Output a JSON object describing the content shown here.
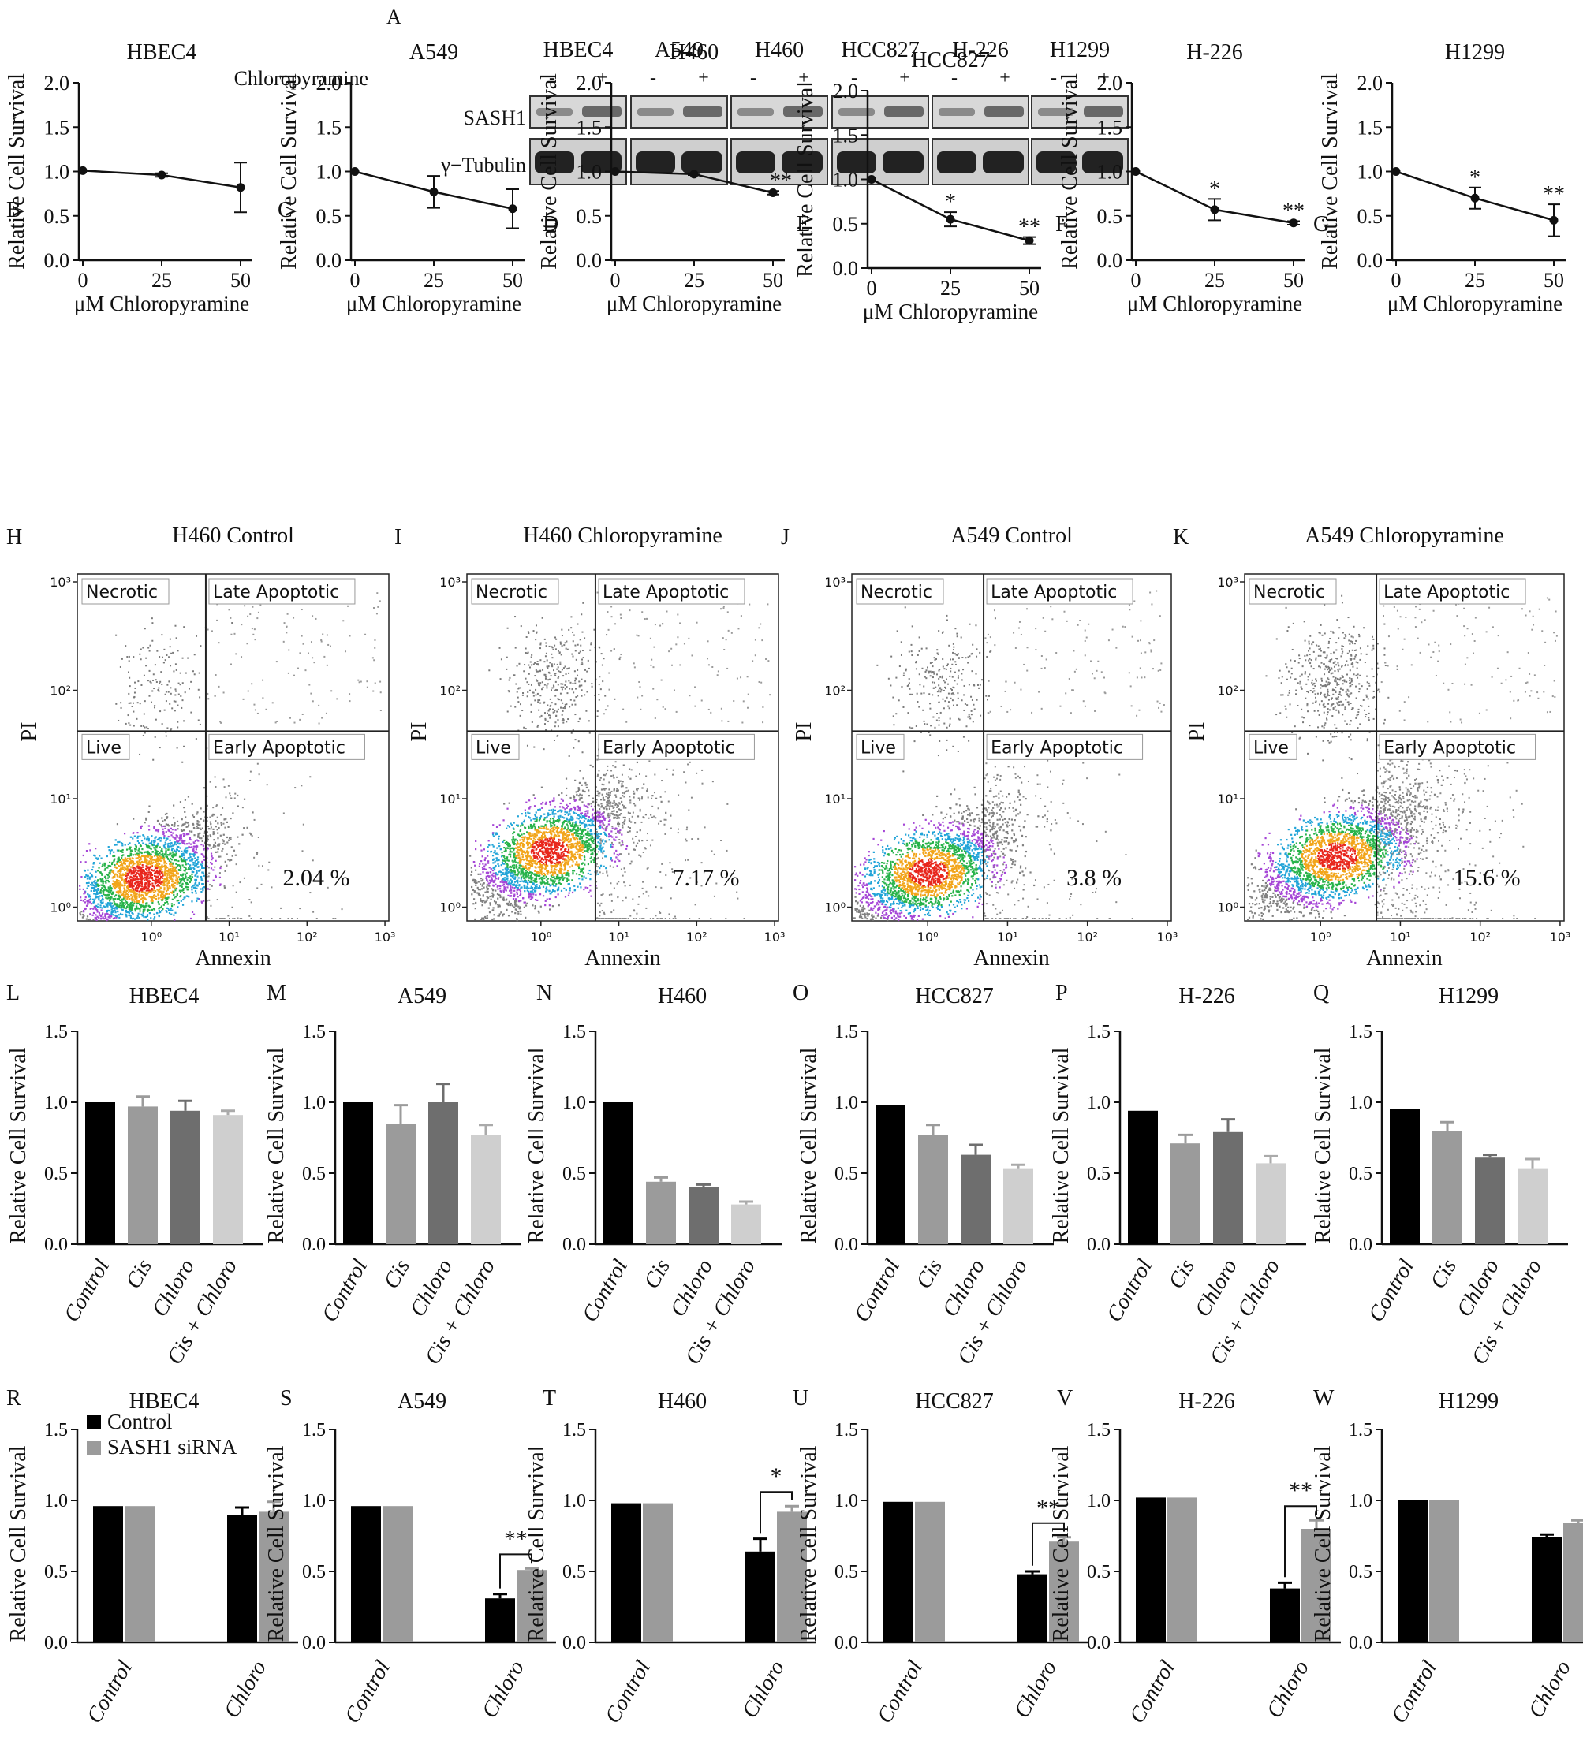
{
  "panel_letters": {
    "A": "A",
    "B": "B",
    "C": "C",
    "D": "D",
    "E": "E",
    "F": "F",
    "G": "G",
    "H": "H",
    "I": "I",
    "J": "J",
    "K": "K",
    "L": "L",
    "M": "M",
    "N": "N",
    "O": "O",
    "P": "P",
    "Q": "Q",
    "R": "R",
    "S": "S",
    "T": "T",
    "U": "U",
    "V": "V",
    "W": "W"
  },
  "western": {
    "cell_lines": [
      "HBEC4",
      "A549",
      "H460",
      "HCC827",
      "H-226",
      "H1299"
    ],
    "treatment_label": "Chloropyramine",
    "minus": "-",
    "plus": "+",
    "bands": [
      "SASH1",
      "γ−Tubulin"
    ]
  },
  "chart_data": [
    {
      "panel": "B",
      "type": "line",
      "title": "HBEC4",
      "xlabel": "μM Chloropyramine",
      "ylabel": "Relative Cell Survival",
      "x": [
        0,
        25,
        50
      ],
      "values": [
        1.01,
        0.96,
        0.82
      ],
      "errors": [
        0,
        0.02,
        0.28
      ],
      "significance": [
        "",
        "",
        ""
      ],
      "ylim": [
        0,
        2
      ],
      "yticks": [
        "0.0",
        "0.5",
        "1.0",
        "1.5",
        "2.0"
      ],
      "xticks": [
        "0",
        "25",
        "50"
      ]
    },
    {
      "panel": "C",
      "type": "line",
      "title": "A549",
      "xlabel": "μM Chloropyramine",
      "ylabel": "Relative Cell Survival",
      "x": [
        0,
        25,
        50
      ],
      "values": [
        1.0,
        0.77,
        0.58
      ],
      "errors": [
        0,
        0.18,
        0.22
      ],
      "significance": [
        "",
        "",
        ""
      ],
      "ylim": [
        0,
        2
      ],
      "yticks": [
        "0.0",
        "0.5",
        "1.0",
        "1.5",
        "2.0"
      ],
      "xticks": [
        "0",
        "25",
        "50"
      ]
    },
    {
      "panel": "D",
      "type": "line",
      "title": "H460",
      "xlabel": "μM Chloropyramine",
      "ylabel": "Relative Cell Survival",
      "x": [
        0,
        25,
        50
      ],
      "values": [
        1.0,
        0.97,
        0.76
      ],
      "errors": [
        0,
        0.01,
        0.02
      ],
      "significance": [
        "",
        "",
        "**"
      ],
      "ylim": [
        0,
        2
      ],
      "yticks": [
        "0.0",
        "0.5",
        "1.0",
        "1.5",
        "2.0"
      ],
      "xticks": [
        "0",
        "25",
        "50"
      ]
    },
    {
      "panel": "E",
      "type": "line",
      "title": "HCC827",
      "xlabel": "μM Chloropyramine",
      "ylabel": "Relative Cell Survival",
      "x": [
        0,
        25,
        50
      ],
      "values": [
        1.0,
        0.55,
        0.31
      ],
      "errors": [
        0,
        0.08,
        0.04
      ],
      "significance": [
        "",
        "*",
        "**"
      ],
      "ylim": [
        0,
        2
      ],
      "yticks": [
        "0.0",
        "0.5",
        "1.0",
        "1.5",
        "2.0"
      ],
      "xticks": [
        "0",
        "25",
        "50"
      ]
    },
    {
      "panel": "F",
      "type": "line",
      "title": "H-226",
      "xlabel": "μM Chloropyramine",
      "ylabel": "Relative Cell Survival",
      "x": [
        0,
        25,
        50
      ],
      "values": [
        1.0,
        0.57,
        0.42
      ],
      "errors": [
        0,
        0.12,
        0.02
      ],
      "significance": [
        "",
        "*",
        "**"
      ],
      "ylim": [
        0,
        2
      ],
      "yticks": [
        "0.0",
        "0.5",
        "1.0",
        "1.5",
        "2.0"
      ],
      "xticks": [
        "0",
        "25",
        "50"
      ]
    },
    {
      "panel": "G",
      "type": "line",
      "title": "H1299",
      "xlabel": "μM Chloropyramine",
      "ylabel": "Relative Cell Survival",
      "x": [
        0,
        25,
        50
      ],
      "values": [
        1.0,
        0.7,
        0.45
      ],
      "errors": [
        0,
        0.12,
        0.18
      ],
      "significance": [
        "",
        "*",
        "**"
      ],
      "ylim": [
        0,
        2
      ],
      "yticks": [
        "0.0",
        "0.5",
        "1.0",
        "1.5",
        "2.0"
      ],
      "xticks": [
        "0",
        "25",
        "50"
      ]
    },
    {
      "panel": "H",
      "type": "scatter",
      "title": "H460 Control",
      "xlabel": "Annexin",
      "ylabel": "PI",
      "quadrants": [
        "Necrotic",
        "Late Apoptotic",
        "Live",
        "Early Apoptotic"
      ],
      "percent": "2.04 %",
      "xticks": [
        "10⁰",
        "10¹",
        "10²",
        "10³"
      ],
      "yticks": [
        "10⁰",
        "10¹",
        "10²",
        "10³"
      ],
      "live_center": [
        0.7,
        1.1
      ],
      "spread": 0.35,
      "necrotic_cluster": 0.25,
      "ea_density": 0.18
    },
    {
      "panel": "I",
      "type": "scatter",
      "title": "H460 Chloropyramine",
      "xlabel": "Annexin",
      "ylabel": "PI",
      "quadrants": [
        "Necrotic",
        "Late Apoptotic",
        "Live",
        "Early Apoptotic"
      ],
      "percent": "7.17 %",
      "xticks": [
        "10⁰",
        "10¹",
        "10²",
        "10³"
      ],
      "yticks": [
        "10⁰",
        "10¹",
        "10²",
        "10³"
      ],
      "live_center": [
        0.9,
        1.35
      ],
      "spread": 0.45,
      "necrotic_cluster": 0.7,
      "ea_density": 0.45
    },
    {
      "panel": "J",
      "type": "scatter",
      "title": "A549 Control",
      "xlabel": "Annexin",
      "ylabel": "PI",
      "quadrants": [
        "Necrotic",
        "Late Apoptotic",
        "Live",
        "Early Apoptotic"
      ],
      "percent": "3.8 %",
      "xticks": [
        "10⁰",
        "10¹",
        "10²",
        "10³"
      ],
      "yticks": [
        "10⁰",
        "10¹",
        "10²",
        "10³"
      ],
      "live_center": [
        0.8,
        1.15
      ],
      "spread": 0.5,
      "necrotic_cluster": 0.45,
      "ea_density": 0.3
    },
    {
      "panel": "K",
      "type": "scatter",
      "title": "A549 Chloropyramine",
      "xlabel": "Annexin",
      "ylabel": "PI",
      "quadrants": [
        "Necrotic",
        "Late Apoptotic",
        "Live",
        "Early Apoptotic"
      ],
      "percent": "15.6 %",
      "xticks": [
        "10⁰",
        "10¹",
        "10²",
        "10³"
      ],
      "yticks": [
        "10⁰",
        "10¹",
        "10²",
        "10³"
      ],
      "live_center": [
        1.0,
        1.3
      ],
      "spread": 0.55,
      "necrotic_cluster": 0.95,
      "ea_density": 0.8
    },
    {
      "panel": "L",
      "type": "bar",
      "title": "HBEC4",
      "ylabel": "Relative Cell Survival",
      "categories": [
        "Control",
        "Cis",
        "Chloro",
        "Cis + Chloro"
      ],
      "values": [
        1.0,
        0.97,
        0.94,
        0.91
      ],
      "errors": [
        0,
        0.07,
        0.07,
        0.03
      ],
      "ylim": [
        0,
        1.5
      ],
      "yticks": [
        "0.0",
        "0.5",
        "1.0",
        "1.5"
      ]
    },
    {
      "panel": "M",
      "type": "bar",
      "title": "A549",
      "ylabel": "Relative Cell Survival",
      "categories": [
        "Control",
        "Cis",
        "Chloro",
        "Cis + Chloro"
      ],
      "values": [
        1.0,
        0.85,
        1.0,
        0.77
      ],
      "errors": [
        0,
        0.13,
        0.13,
        0.07
      ],
      "ylim": [
        0,
        1.5
      ],
      "yticks": [
        "0.0",
        "0.5",
        "1.0",
        "1.5"
      ]
    },
    {
      "panel": "N",
      "type": "bar",
      "title": "H460",
      "ylabel": "Relative Cell Survival",
      "categories": [
        "Control",
        "Cis",
        "Chloro",
        "Cis + Chloro"
      ],
      "values": [
        1.0,
        0.44,
        0.4,
        0.28
      ],
      "errors": [
        0,
        0.03,
        0.02,
        0.02
      ],
      "ylim": [
        0,
        1.5
      ],
      "yticks": [
        "0.0",
        "0.5",
        "1.0",
        "1.5"
      ]
    },
    {
      "panel": "O",
      "type": "bar",
      "title": "HCC827",
      "ylabel": "Relative Cell Survival",
      "categories": [
        "Control",
        "Cis",
        "Chloro",
        "Cis + Chloro"
      ],
      "values": [
        0.98,
        0.77,
        0.63,
        0.53
      ],
      "errors": [
        0,
        0.07,
        0.07,
        0.03
      ],
      "ylim": [
        0,
        1.5
      ],
      "yticks": [
        "0.0",
        "0.5",
        "1.0",
        "1.5"
      ]
    },
    {
      "panel": "P",
      "type": "bar",
      "title": "H-226",
      "ylabel": "Relative Cell Survival",
      "categories": [
        "Control",
        "Cis",
        "Chloro",
        "Cis + Chloro"
      ],
      "values": [
        0.94,
        0.71,
        0.79,
        0.57
      ],
      "errors": [
        0,
        0.06,
        0.09,
        0.05
      ],
      "ylim": [
        0,
        1.5
      ],
      "yticks": [
        "0.0",
        "0.5",
        "1.0",
        "1.5"
      ]
    },
    {
      "panel": "Q",
      "type": "bar",
      "title": "H1299",
      "ylabel": "Relative Cell Survival",
      "categories": [
        "Control",
        "Cis",
        "Chloro",
        "Cis + Chloro"
      ],
      "values": [
        0.95,
        0.8,
        0.61,
        0.53
      ],
      "errors": [
        0,
        0.06,
        0.02,
        0.07
      ],
      "ylim": [
        0,
        1.5
      ],
      "yticks": [
        "0.0",
        "0.5",
        "1.0",
        "1.5"
      ]
    },
    {
      "panel": "R",
      "type": "bar",
      "title": "HBEC4",
      "ylabel": "Relative Cell Survival",
      "categories": [
        "Control",
        "Chloro"
      ],
      "series": [
        {
          "name": "Control",
          "values": [
            0.96,
            0.9
          ],
          "errors": [
            0,
            0.05
          ]
        },
        {
          "name": "SASH1 siRNA",
          "values": [
            0.96,
            0.92
          ],
          "errors": [
            0,
            0.07
          ]
        }
      ],
      "legend": [
        "Control",
        "SASH1 siRNA"
      ],
      "significance": "",
      "ylim": [
        0,
        1.5
      ],
      "yticks": [
        "0.0",
        "0.5",
        "1.0",
        "1.5"
      ]
    },
    {
      "panel": "S",
      "type": "bar",
      "title": "A549",
      "ylabel": "Relative Cell Survival",
      "categories": [
        "Control",
        "Chloro"
      ],
      "series": [
        {
          "name": "Control",
          "values": [
            0.96,
            0.31
          ],
          "errors": [
            0,
            0.03
          ]
        },
        {
          "name": "SASH1 siRNA",
          "values": [
            0.96,
            0.51
          ],
          "errors": [
            0,
            0.01
          ]
        }
      ],
      "significance": "**",
      "ylim": [
        0,
        1.5
      ],
      "yticks": [
        "0.0",
        "0.5",
        "1.0",
        "1.5"
      ]
    },
    {
      "panel": "T",
      "type": "bar",
      "title": "H460",
      "ylabel": "Relative Cell Survival",
      "categories": [
        "Control",
        "Chloro"
      ],
      "series": [
        {
          "name": "Control",
          "values": [
            0.98,
            0.64
          ],
          "errors": [
            0,
            0.09
          ]
        },
        {
          "name": "SASH1 siRNA",
          "values": [
            0.98,
            0.92
          ],
          "errors": [
            0,
            0.04
          ]
        }
      ],
      "significance": "*",
      "ylim": [
        0,
        1.5
      ],
      "yticks": [
        "0.0",
        "0.5",
        "1.0",
        "1.5"
      ]
    },
    {
      "panel": "U",
      "type": "bar",
      "title": "HCC827",
      "ylabel": "Relative Cell Survival",
      "categories": [
        "Control",
        "Chloro"
      ],
      "series": [
        {
          "name": "Control",
          "values": [
            0.99,
            0.48
          ],
          "errors": [
            0,
            0.02
          ]
        },
        {
          "name": "SASH1 siRNA",
          "values": [
            0.99,
            0.71
          ],
          "errors": [
            0,
            0.03
          ]
        }
      ],
      "significance": "**",
      "ylim": [
        0,
        1.5
      ],
      "yticks": [
        "0.0",
        "0.5",
        "1.0",
        "1.5"
      ]
    },
    {
      "panel": "V",
      "type": "bar",
      "title": "H-226",
      "ylabel": "Relative Cell Survival",
      "categories": [
        "Control",
        "Chloro"
      ],
      "series": [
        {
          "name": "Control",
          "values": [
            1.02,
            0.38
          ],
          "errors": [
            0,
            0.04
          ]
        },
        {
          "name": "SASH1 siRNA",
          "values": [
            1.02,
            0.8
          ],
          "errors": [
            0,
            0.06
          ]
        }
      ],
      "significance": "**",
      "ylim": [
        0,
        1.5
      ],
      "yticks": [
        "0.0",
        "0.5",
        "1.0",
        "1.5"
      ]
    },
    {
      "panel": "W",
      "type": "bar",
      "title": "H1299",
      "ylabel": "Relative Cell Survival",
      "categories": [
        "Control",
        "Chloro"
      ],
      "series": [
        {
          "name": "Control",
          "values": [
            1.0,
            0.74
          ],
          "errors": [
            0,
            0.02
          ]
        },
        {
          "name": "SASH1 siRNA",
          "values": [
            1.0,
            0.84
          ],
          "errors": [
            0,
            0.02
          ]
        }
      ],
      "significance": "",
      "ylim": [
        0,
        1.5
      ],
      "yticks": [
        "0.0",
        "0.5",
        "1.0",
        "1.5"
      ]
    }
  ]
}
